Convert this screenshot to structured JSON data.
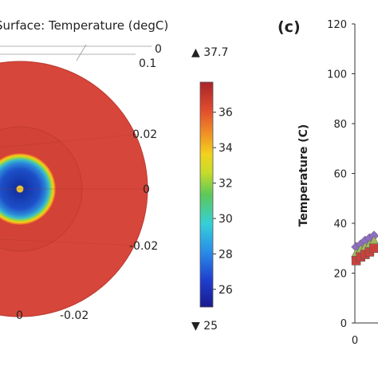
{
  "chart_data": [
    {
      "type": "heatmap",
      "title": "Surface: Temperature (degC)",
      "colorbar": {
        "min": 25,
        "max": 37.7,
        "max_label": "▲ 37.7",
        "min_label": "▼ 25",
        "ticks": [
          26,
          28,
          30,
          32,
          34,
          36
        ]
      },
      "axis_labels": [
        "0",
        "0.1",
        "0.02",
        "0",
        "-0.02",
        "0",
        "-0.02"
      ],
      "rings": [
        {
          "name": "outer",
          "temperature": 37.2
        },
        {
          "name": "middle",
          "temperature": 37.0
        },
        {
          "name": "inner-edge",
          "temperature": 34.5
        },
        {
          "name": "core",
          "temperature": 26.5
        }
      ]
    },
    {
      "type": "scatter",
      "panel_label": "(c)",
      "ylabel": "Temperature (C)",
      "ylim": [
        0,
        120
      ],
      "yticks": [
        0,
        20,
        40,
        60,
        80,
        100,
        120
      ],
      "xticks": [
        0
      ],
      "series": [
        {
          "marker": "diamond",
          "color": "#8e6fc4",
          "points": [
            [
              0.1,
              30.5
            ],
            [
              0.45,
              31.5
            ],
            [
              0.8,
              33
            ],
            [
              1.15,
              34
            ],
            [
              1.5,
              35
            ],
            [
              1.85,
              36
            ]
          ]
        },
        {
          "marker": "triangle",
          "color": "#a4b65a",
          "points": [
            [
              0.1,
              28
            ],
            [
              0.45,
              29.5
            ],
            [
              0.8,
              30.5
            ],
            [
              1.15,
              31.5
            ],
            [
              1.5,
              33
            ],
            [
              1.85,
              34
            ]
          ]
        },
        {
          "marker": "square",
          "color": "#c8423c",
          "points": [
            [
              0.1,
              25
            ],
            [
              0.45,
              26.5
            ],
            [
              0.8,
              27.5
            ],
            [
              1.15,
              28.5
            ],
            [
              1.5,
              30
            ],
            [
              1.85,
              31
            ]
          ]
        }
      ]
    }
  ]
}
